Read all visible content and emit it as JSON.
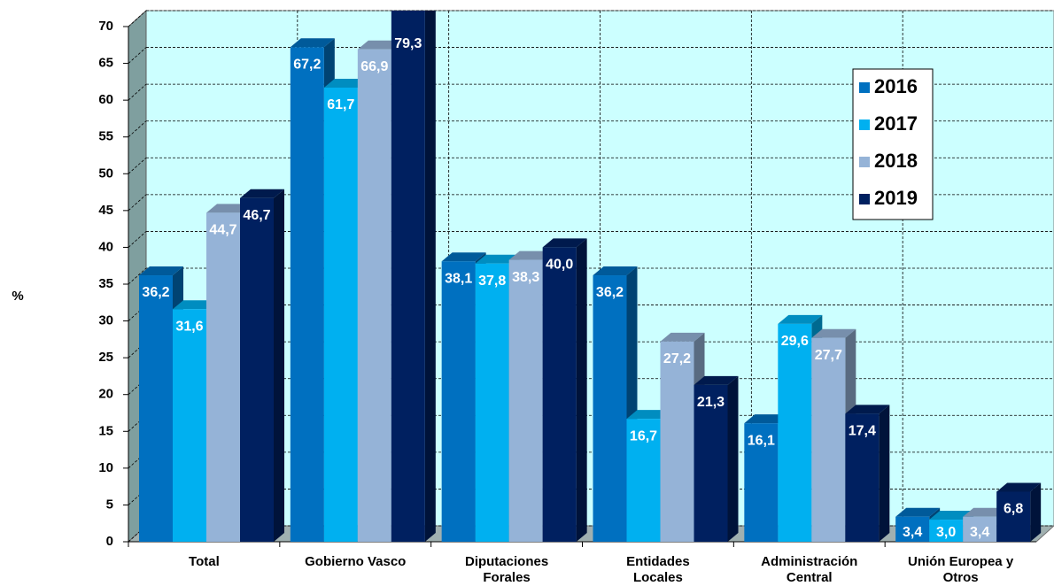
{
  "chart_data": {
    "type": "bar3d",
    "y_label": "%",
    "categories": [
      "Total",
      "Gobierno Vasco",
      "Diputaciones Forales",
      "Entidades Locales",
      "Administración Central",
      "Unión Europea y Otros"
    ],
    "series": [
      {
        "name": "2016",
        "color": "#0070c0",
        "values": [
          36.2,
          67.2,
          38.1,
          36.2,
          16.1,
          3.4
        ],
        "value_labels": [
          "36,2",
          "67,2",
          "38,1",
          "36,2",
          "16,1",
          "3,4"
        ]
      },
      {
        "name": "2017",
        "color": "#00b0f0",
        "values": [
          31.6,
          61.7,
          37.8,
          16.7,
          29.6,
          3.0
        ],
        "value_labels": [
          "31,6",
          "61,7",
          "37,8",
          "16,7",
          "29,6",
          "3,0"
        ]
      },
      {
        "name": "2018",
        "color": "#95b3d7",
        "values": [
          44.7,
          66.9,
          38.3,
          27.2,
          27.7,
          3.4
        ],
        "value_labels": [
          "44,7",
          "66,9",
          "38,3",
          "27,2",
          "27,7",
          "3,4"
        ]
      },
      {
        "name": "2019",
        "color": "#002060",
        "values": [
          46.7,
          79.3,
          40.0,
          21.3,
          17.4,
          6.8
        ],
        "value_labels": [
          "46,7",
          "79,3",
          "40,0",
          "21,3",
          "17,4",
          "6,8"
        ]
      }
    ],
    "ylim": [
      0,
      70
    ],
    "yticks": [
      0,
      5,
      10,
      15,
      20,
      25,
      30,
      35,
      40,
      45,
      50,
      55,
      60,
      65,
      70
    ],
    "grid": true,
    "legend": "top-right"
  }
}
